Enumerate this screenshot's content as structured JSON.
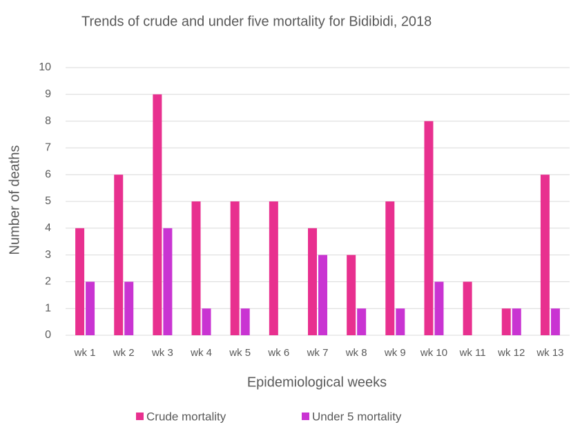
{
  "chart_data": {
    "type": "bar",
    "title": "Trends of crude and under five mortality for Bidibidi, 2018",
    "x_label": "Epidemiological weeks",
    "y_label": "Number of deaths",
    "categories": [
      "wk 1",
      "wk 2",
      "wk 3",
      "wk 4",
      "wk 5",
      "wk 6",
      "wk 7",
      "wk 8",
      "wk 9",
      "wk 10",
      "wk 11",
      "wk 12",
      "wk 13"
    ],
    "series": [
      {
        "name": "Crude mortality",
        "color": "#e8308f",
        "values": [
          4,
          6,
          9,
          5,
          5,
          5,
          4,
          3,
          5,
          8,
          2,
          1,
          6
        ]
      },
      {
        "name": "Under 5 mortality",
        "color": "#c934d2",
        "values": [
          2,
          2,
          4,
          1,
          1,
          0,
          3,
          1,
          1,
          2,
          0,
          1,
          1
        ]
      }
    ],
    "ylim": [
      0,
      10
    ],
    "yticks": [
      0,
      1,
      2,
      3,
      4,
      5,
      6,
      7,
      8,
      9,
      10
    ],
    "grid": true,
    "legend": "bottom"
  }
}
